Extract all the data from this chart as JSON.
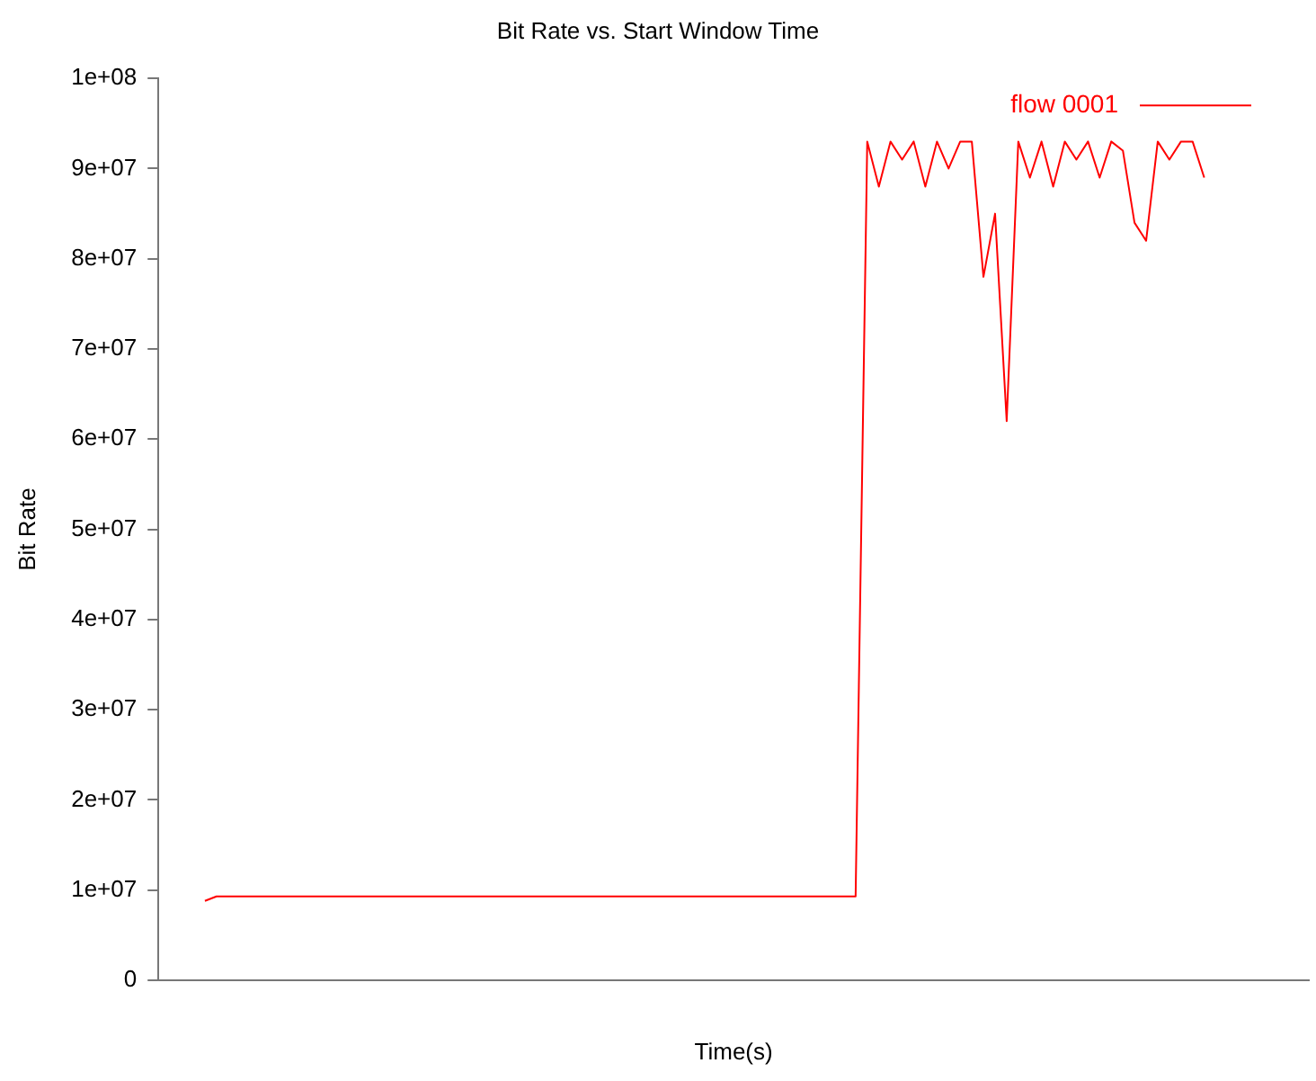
{
  "chart_data": {
    "type": "line",
    "title": "Bit Rate vs. Start Window Time",
    "xlabel": "Time(s)",
    "ylabel": "Bit Rate",
    "categories": [
      null,
      null,
      null,
      null,
      null,
      null,
      null,
      null,
      null,
      null,
      null,
      null,
      null,
      null,
      null,
      null,
      null,
      null,
      null,
      null,
      null,
      null,
      null,
      null,
      null,
      null,
      null,
      null,
      null,
      null,
      null,
      null,
      null,
      null,
      null,
      null,
      null,
      null,
      null,
      null,
      null,
      null,
      null,
      null,
      null,
      null,
      null,
      null,
      null,
      null,
      null,
      null,
      null,
      null,
      null,
      null,
      null,
      null,
      null,
      null,
      null,
      null,
      null,
      null,
      null,
      null,
      null,
      null,
      null,
      null,
      null,
      null,
      null,
      null,
      null,
      null,
      null,
      null,
      null,
      null,
      null,
      null,
      null,
      null,
      null,
      null,
      null,
      null,
      null,
      null,
      null,
      null,
      null,
      null,
      null,
      null,
      null,
      null,
      null,
      null
    ],
    "series": [
      {
        "name": "flow 0001",
        "color": "#ff0000",
        "values": [
          null,
          null,
          null,
          null,
          8800000,
          9300000,
          9300000,
          9300000,
          9300000,
          9300000,
          9300000,
          9300000,
          9300000,
          9300000,
          9300000,
          9300000,
          9300000,
          9300000,
          9300000,
          9300000,
          9300000,
          9300000,
          9300000,
          9300000,
          9300000,
          9300000,
          9300000,
          9300000,
          9300000,
          9300000,
          9300000,
          9300000,
          9300000,
          9300000,
          9300000,
          9300000,
          9300000,
          9300000,
          9300000,
          9300000,
          9300000,
          9300000,
          9300000,
          9300000,
          9300000,
          9300000,
          9300000,
          9300000,
          9300000,
          9300000,
          9300000,
          9300000,
          9300000,
          9300000,
          9300000,
          9300000,
          9300000,
          9300000,
          9300000,
          9300000,
          9300000,
          93000000,
          88000000,
          93000000,
          91000000,
          93000000,
          88000000,
          93000000,
          90000000,
          93000000,
          93000000,
          78000000,
          85000000,
          62000000,
          93000000,
          89000000,
          93000000,
          88000000,
          93000000,
          91000000,
          93000000,
          89000000,
          93000000,
          92000000,
          84000000,
          82000000,
          93000000,
          91000000,
          93000000,
          93000000,
          89000000,
          null,
          null,
          null,
          null,
          null,
          null,
          null,
          null,
          null
        ]
      }
    ],
    "ylim": [
      0,
      100000000
    ],
    "yticks": [
      {
        "value": 0,
        "label": "0"
      },
      {
        "value": 10000000,
        "label": "1e+07"
      },
      {
        "value": 20000000,
        "label": "2e+07"
      },
      {
        "value": 30000000,
        "label": "3e+07"
      },
      {
        "value": 40000000,
        "label": "4e+07"
      },
      {
        "value": 50000000,
        "label": "5e+07"
      },
      {
        "value": 60000000,
        "label": "6e+07"
      },
      {
        "value": 70000000,
        "label": "7e+07"
      },
      {
        "value": 80000000,
        "label": "8e+07"
      },
      {
        "value": 90000000,
        "label": "9e+07"
      },
      {
        "value": 100000000,
        "label": "1e+08"
      }
    ],
    "grid": false,
    "legend": "top right",
    "marker": "none",
    "line_style": "solid"
  }
}
